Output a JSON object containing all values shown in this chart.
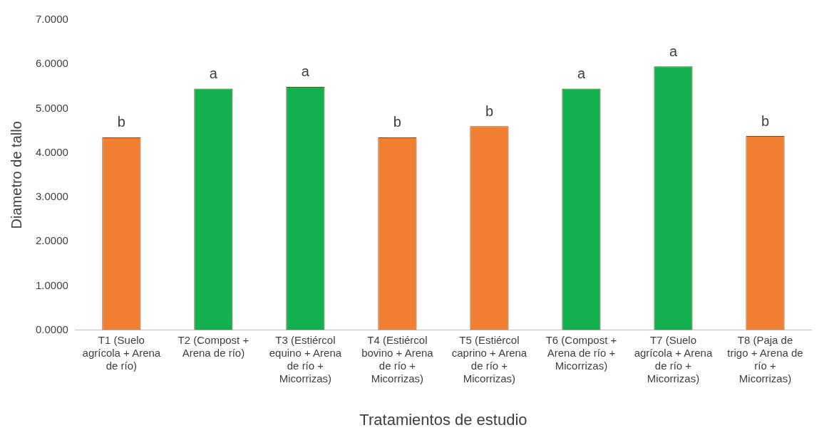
{
  "chart_data": {
    "type": "bar",
    "xlabel": "Tratamientos de estudio",
    "ylabel": "Diametro de tallo",
    "categories": [
      "T1 (Suelo agrícola + Arena de río)",
      "T2 (Compost + Arena de río)",
      "T3 (Estiércol equino + Arena de río + Micorrizas)",
      "T4 (Estiércol bovino + Arena de río + Micorrizas)",
      "T5 (Estiércol caprino + Arena de río + Micorrizas)",
      "T6 (Compost + Arena de río + Micorrizas)",
      "T7 (Suelo agrícola + Arena de río + Micorrizas)",
      "T8 (Paja de trigo + Arena de río + Micorrizas)"
    ],
    "values": [
      4.35,
      5.45,
      5.49,
      4.35,
      4.6,
      5.45,
      5.95,
      4.38
    ],
    "colors": [
      "#f07f32",
      "#12b04f",
      "#12b04f",
      "#f07f32",
      "#f07f32",
      "#12b04f",
      "#12b04f",
      "#f07f32"
    ],
    "ylim": [
      0,
      7
    ],
    "yticks": [
      {
        "value": 0,
        "label": "0.0000"
      },
      {
        "value": 1,
        "label": "1.0000"
      },
      {
        "value": 2,
        "label": "2.0000"
      },
      {
        "value": 3,
        "label": "3.0000"
      },
      {
        "value": 4,
        "label": "4.0000"
      },
      {
        "value": 5,
        "label": "5.0000"
      },
      {
        "value": 6,
        "label": "6.0000"
      },
      {
        "value": 7,
        "label": "7.0000"
      }
    ],
    "annotations": [
      {
        "text": "b",
        "x": "T1 (Suelo agrícola + Arena de río)",
        "y": 4.35
      },
      {
        "text": "a",
        "x": "T2 (Compost + Arena de río)",
        "y": 5.45
      },
      {
        "text": "a",
        "x": "T3 (Estiércol equino + Arena de río + Micorrizas)",
        "y": 5.49
      },
      {
        "text": "b",
        "x": "T4 (Estiércol bovino + Arena de río + Micorrizas)",
        "y": 4.35
      },
      {
        "text": "b",
        "x": "T5 (Estiércol caprino + Arena de río + Micorrizas)",
        "y": 4.6
      },
      {
        "text": "a",
        "x": "T6 (Compost + Arena de río + Micorrizas)",
        "y": 5.45
      },
      {
        "text": "a",
        "x": "T7 (Suelo agrícola + Arena de río + Micorrizas)",
        "y": 5.95
      },
      {
        "text": "b",
        "x": "T8 (Paja de trigo + Arena de río + Micorrizas)",
        "y": 4.38
      }
    ],
    "grid": false,
    "legend": false
  }
}
